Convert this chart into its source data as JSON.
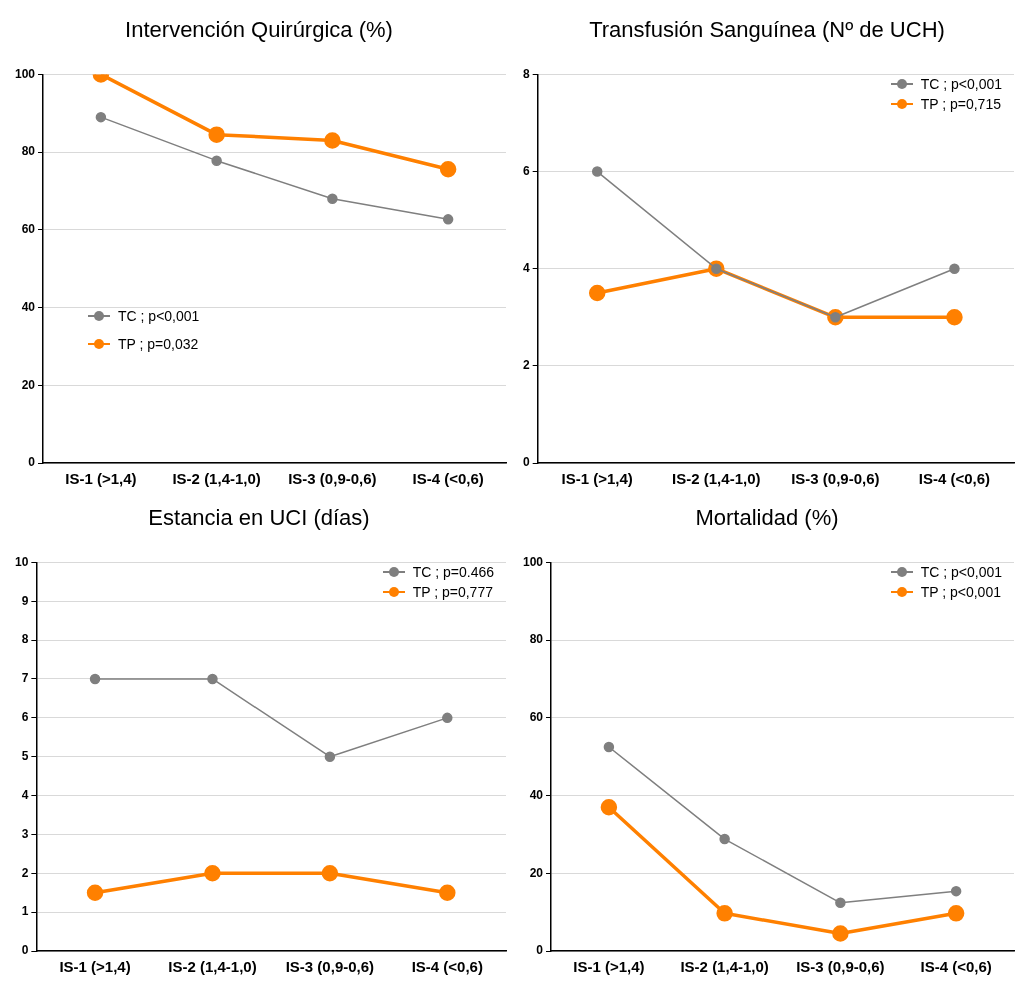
{
  "chart_data": [
    {
      "type": "line",
      "title": "Intervención Quirúrgica (%)",
      "categories": [
        "IS-1 (>1,4)",
        "IS-2 (1,4-1,0)",
        "IS-3 (0,9-0,6)",
        "IS-4 (<0,6)"
      ],
      "series": [
        {
          "name": "TC ; p<0,001",
          "color": "#7f7f7f",
          "values": [
            89,
            77.8,
            68,
            62.7
          ]
        },
        {
          "name": "TP ; p=0,032",
          "color": "#ff8000",
          "values": [
            100,
            84.5,
            83,
            75.6
          ]
        }
      ],
      "ylim": [
        0,
        100
      ],
      "yticks": [
        0,
        20,
        40,
        60,
        80,
        100
      ],
      "grid": "y",
      "legend": "center left",
      "marker": "circle"
    },
    {
      "type": "line",
      "title": "Transfusión Sanguínea (Nº de UCH)",
      "categories": [
        "IS-1 (>1,4)",
        "IS-2 (1,4-1,0)",
        "IS-3 (0,9-0,6)",
        "IS-4 (<0,6)"
      ],
      "series": [
        {
          "name": "TC ; p<0,001",
          "color": "#7f7f7f",
          "values": [
            6,
            4,
            3,
            4
          ]
        },
        {
          "name": "TP ; p=0,715",
          "color": "#ff8000",
          "values": [
            3.5,
            4,
            3,
            3
          ]
        }
      ],
      "ylim": [
        0,
        8
      ],
      "yticks": [
        0,
        2,
        4,
        6,
        8
      ],
      "grid": "y",
      "legend": "top right",
      "marker": "circle"
    },
    {
      "type": "line",
      "title": "Estancia en UCI (días)",
      "categories": [
        "IS-1 (>1,4)",
        "IS-2 (1,4-1,0)",
        "IS-3 (0,9-0,6)",
        "IS-4 (<0,6)"
      ],
      "series": [
        {
          "name": "TC ; p=0.466",
          "color": "#7f7f7f",
          "values": [
            7,
            7,
            5,
            6
          ]
        },
        {
          "name": "TP ; p=0,777",
          "color": "#ff8000",
          "values": [
            1.5,
            2,
            2,
            1.5
          ]
        }
      ],
      "ylim": [
        0,
        10
      ],
      "yticks": [
        0,
        1,
        2,
        3,
        4,
        5,
        6,
        7,
        8,
        9,
        10
      ],
      "grid": "y",
      "legend": "top right",
      "marker": "circle"
    },
    {
      "type": "line",
      "title": "Mortalidad (%)",
      "categories": [
        "IS-1 (>1,4)",
        "IS-2 (1,4-1,0)",
        "IS-3 (0,9-0,6)",
        "IS-4 (<0,6)"
      ],
      "series": [
        {
          "name": "TC ; p<0,001",
          "color": "#7f7f7f",
          "values": [
            52.5,
            28.8,
            12.4,
            15.4
          ]
        },
        {
          "name": "TP ; p<0,001",
          "color": "#ff8000",
          "values": [
            37,
            9.7,
            4.5,
            9.7
          ]
        }
      ],
      "ylim": [
        0,
        100
      ],
      "yticks": [
        0,
        20,
        40,
        60,
        80,
        100
      ],
      "grid": "y",
      "legend": "top right",
      "marker": "circle"
    }
  ]
}
